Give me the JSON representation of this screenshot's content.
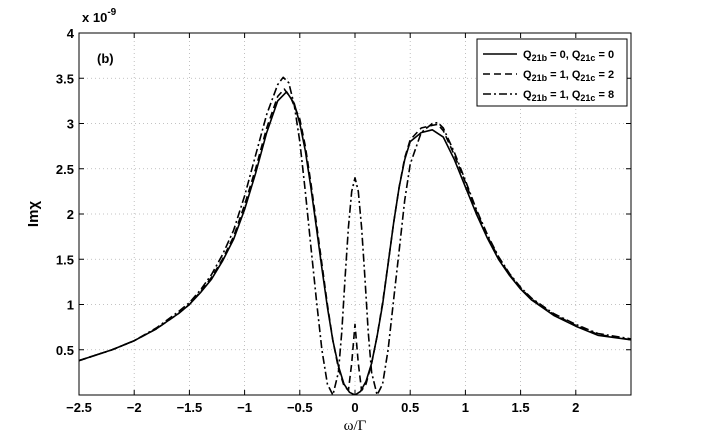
{
  "chart_data": {
    "type": "line",
    "panel_label": "(b)",
    "xlabel": "ω/Γ",
    "ylabel": "Imχ",
    "y_multiplier": "x 10",
    "y_multiplier_exponent": "-9",
    "xlim": [
      -2.5,
      2.5
    ],
    "ylim": [
      0,
      4
    ],
    "x_ticks": [
      "-2.5",
      "-2",
      "-1.5",
      "-1",
      "-0.5",
      "0",
      "0.5",
      "1",
      "1.5",
      "2"
    ],
    "y_ticks": [
      "0.5",
      "1",
      "1.5",
      "2",
      "2.5",
      "3",
      "3.5",
      "4"
    ],
    "grid": true,
    "legend_position": "top-right",
    "series": [
      {
        "name": "Q21b = 0, Q21c = 0",
        "name_parts": [
          [
            "Q",
            ""
          ],
          [
            "21b",
            "sub"
          ],
          [
            " = 0, Q",
            ""
          ],
          [
            "21c",
            "sub"
          ],
          [
            " = 0",
            ""
          ]
        ],
        "style": "solid",
        "x": [
          -2.5,
          -2.2,
          -2.0,
          -1.8,
          -1.6,
          -1.5,
          -1.4,
          -1.3,
          -1.2,
          -1.1,
          -1.0,
          -0.9,
          -0.8,
          -0.7,
          -0.62,
          -0.55,
          -0.5,
          -0.45,
          -0.4,
          -0.35,
          -0.3,
          -0.25,
          -0.2,
          -0.15,
          -0.1,
          -0.05,
          0.0,
          0.05,
          0.1,
          0.15,
          0.2,
          0.25,
          0.3,
          0.35,
          0.4,
          0.45,
          0.5,
          0.6,
          0.7,
          0.8,
          0.9,
          1.0,
          1.1,
          1.2,
          1.3,
          1.4,
          1.5,
          1.6,
          1.8,
          2.0,
          2.2,
          2.5
        ],
        "y": [
          0.38,
          0.5,
          0.6,
          0.73,
          0.9,
          1.0,
          1.13,
          1.28,
          1.48,
          1.72,
          2.05,
          2.45,
          2.9,
          3.25,
          3.35,
          3.22,
          3.0,
          2.7,
          2.3,
          1.85,
          1.4,
          0.97,
          0.6,
          0.32,
          0.12,
          0.03,
          0.0,
          0.04,
          0.15,
          0.35,
          0.65,
          1.0,
          1.45,
          1.9,
          2.3,
          2.6,
          2.8,
          2.9,
          2.93,
          2.85,
          2.6,
          2.3,
          2.0,
          1.73,
          1.5,
          1.32,
          1.17,
          1.05,
          0.88,
          0.76,
          0.66,
          0.61
        ]
      },
      {
        "name": "Q21b = 1, Q21c = 2",
        "name_parts": [
          [
            "Q",
            ""
          ],
          [
            "21b",
            "sub"
          ],
          [
            " = 1, Q",
            ""
          ],
          [
            "21c",
            "sub"
          ],
          [
            " = 2",
            ""
          ]
        ],
        "style": "dashed",
        "x": [
          -2.5,
          -2.2,
          -2.0,
          -1.8,
          -1.6,
          -1.5,
          -1.4,
          -1.3,
          -1.2,
          -1.1,
          -1.0,
          -0.9,
          -0.8,
          -0.7,
          -0.64,
          -0.58,
          -0.5,
          -0.45,
          -0.4,
          -0.35,
          -0.3,
          -0.25,
          -0.2,
          -0.15,
          -0.1,
          -0.06,
          -0.03,
          0.0,
          0.03,
          0.06,
          0.1,
          0.15,
          0.2,
          0.25,
          0.3,
          0.35,
          0.4,
          0.45,
          0.5,
          0.6,
          0.7,
          0.75,
          0.8,
          0.9,
          1.0,
          1.1,
          1.2,
          1.3,
          1.4,
          1.5,
          1.6,
          1.8,
          2.0,
          2.2,
          2.5
        ],
        "y": [
          0.38,
          0.5,
          0.6,
          0.73,
          0.9,
          1.0,
          1.14,
          1.3,
          1.5,
          1.75,
          2.1,
          2.5,
          2.95,
          3.3,
          3.38,
          3.28,
          3.05,
          2.75,
          2.35,
          1.9,
          1.45,
          1.0,
          0.6,
          0.3,
          0.1,
          0.05,
          0.35,
          0.78,
          0.35,
          0.05,
          0.12,
          0.35,
          0.65,
          1.02,
          1.45,
          1.9,
          2.3,
          2.62,
          2.82,
          2.95,
          2.98,
          2.99,
          2.92,
          2.65,
          2.35,
          2.03,
          1.75,
          1.52,
          1.33,
          1.18,
          1.06,
          0.89,
          0.77,
          0.67,
          0.61
        ]
      },
      {
        "name": "Q21b = 1, Q21c = 8",
        "name_parts": [
          [
            "Q",
            ""
          ],
          [
            "21b",
            "sub"
          ],
          [
            " = 1, Q",
            ""
          ],
          [
            "21c",
            "sub"
          ],
          [
            " = 8",
            ""
          ]
        ],
        "style": "dashdot",
        "x": [
          -2.5,
          -2.2,
          -2.0,
          -1.8,
          -1.6,
          -1.5,
          -1.4,
          -1.3,
          -1.2,
          -1.1,
          -1.0,
          -0.9,
          -0.8,
          -0.7,
          -0.65,
          -0.6,
          -0.55,
          -0.5,
          -0.45,
          -0.4,
          -0.35,
          -0.3,
          -0.25,
          -0.2,
          -0.15,
          -0.12,
          -0.09,
          -0.06,
          -0.03,
          0.0,
          0.03,
          0.06,
          0.09,
          0.12,
          0.15,
          0.2,
          0.25,
          0.3,
          0.35,
          0.4,
          0.45,
          0.5,
          0.6,
          0.7,
          0.75,
          0.8,
          0.9,
          1.0,
          1.1,
          1.2,
          1.3,
          1.4,
          1.5,
          1.6,
          1.8,
          2.0,
          2.2,
          2.5
        ],
        "y": [
          0.38,
          0.5,
          0.6,
          0.74,
          0.92,
          1.02,
          1.16,
          1.33,
          1.55,
          1.82,
          2.2,
          2.65,
          3.1,
          3.43,
          3.51,
          3.45,
          3.2,
          2.8,
          2.25,
          1.65,
          1.05,
          0.5,
          0.12,
          0.0,
          0.25,
          0.7,
          1.3,
          1.85,
          2.25,
          2.4,
          2.25,
          1.85,
          1.3,
          0.7,
          0.25,
          0.0,
          0.12,
          0.5,
          1.05,
          1.6,
          2.15,
          2.55,
          2.9,
          3.0,
          3.01,
          2.95,
          2.68,
          2.37,
          2.05,
          1.77,
          1.53,
          1.34,
          1.19,
          1.07,
          0.9,
          0.78,
          0.68,
          0.62
        ]
      }
    ]
  }
}
